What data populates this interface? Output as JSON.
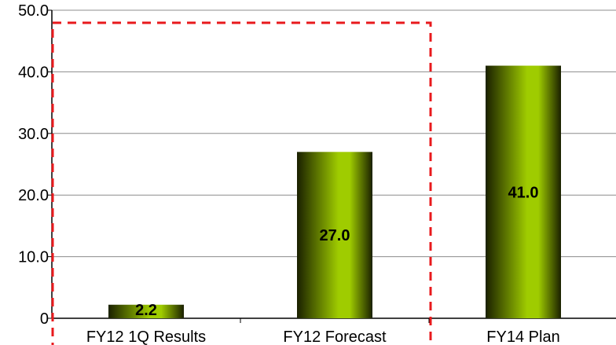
{
  "chart_data": {
    "type": "bar",
    "categories": [
      "FY12 1Q Results",
      "FY12 Forecast",
      "FY14 Plan"
    ],
    "values": [
      2.2,
      27.0,
      41.0
    ],
    "data_labels": [
      "2.2",
      "27.0",
      "41.0"
    ],
    "y_ticks": [
      0,
      10,
      20,
      30,
      40,
      50
    ],
    "y_tick_labels": [
      "0",
      "10.0",
      "20.0",
      "30.0",
      "40.0",
      "50.0"
    ],
    "ylim": [
      0,
      50
    ],
    "title": "",
    "xlabel": "",
    "ylabel": "",
    "grid": true,
    "bar_color_light": "#9fcc00",
    "bar_color_dark": "#1a2000",
    "highlight_box_color": "#e8191c",
    "highlight_covers": [
      "FY12 1Q Results",
      "FY12 Forecast"
    ]
  }
}
